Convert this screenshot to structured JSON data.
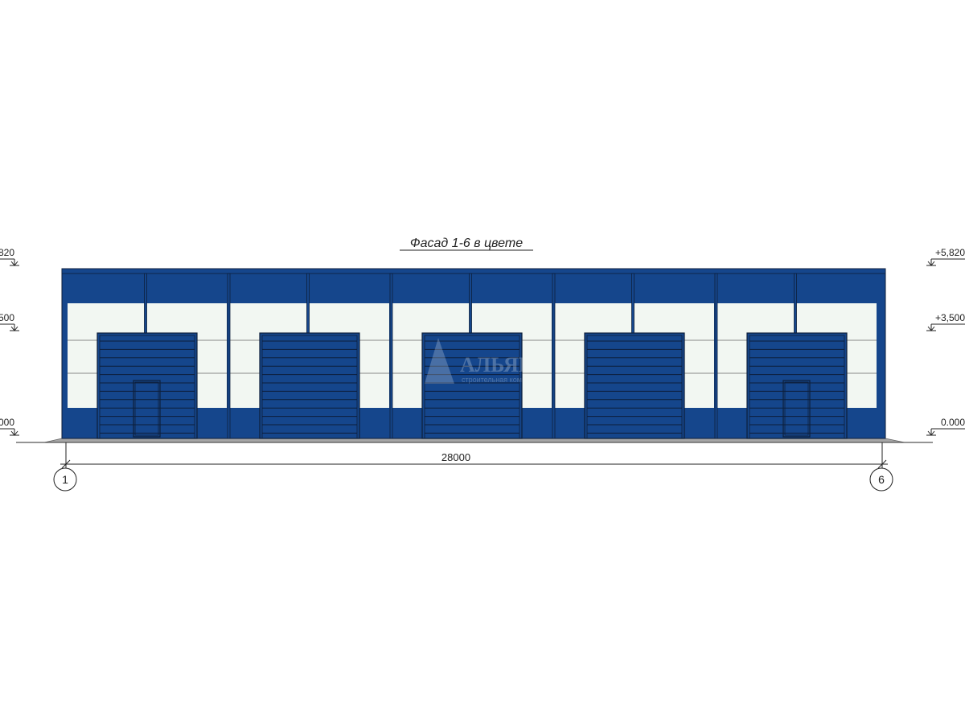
{
  "title": "Фасад 1-6 в цвете",
  "dimension": "28000",
  "axes": [
    "1",
    "6"
  ],
  "elevations": [
    "+5,820",
    "+3,500",
    "0.000"
  ],
  "watermark": {
    "brand": "АЛЬЯНС",
    "tagline": "строительная компания"
  },
  "colors": {
    "panel_blue": "#15468c",
    "panel_white": "#f2f7f2",
    "plinth": "#a6a6a6",
    "outline": "#0d1e3a"
  },
  "bays": 5,
  "wicket_doors_in_bays": [
    1,
    5
  ]
}
